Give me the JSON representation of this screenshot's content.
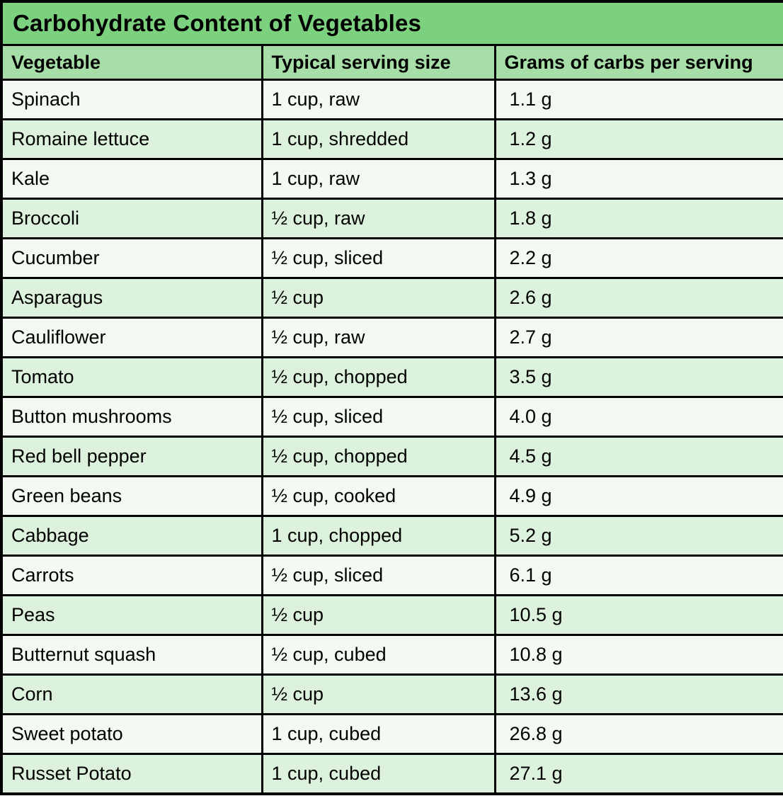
{
  "chart_data": {
    "type": "table",
    "title": "Carbohydrate Content of Vegetables",
    "columns": [
      "Vegetable",
      "Typical serving size",
      "Grams of carbs per serving"
    ],
    "rows": [
      [
        "Spinach",
        "1 cup, raw",
        "1.1 g"
      ],
      [
        "Romaine lettuce",
        "1 cup, shredded",
        "1.2 g"
      ],
      [
        "Kale",
        "1 cup, raw",
        "1.3 g"
      ],
      [
        "Broccoli",
        "½ cup, raw",
        "1.8 g"
      ],
      [
        "Cucumber",
        "½ cup, sliced",
        "2.2 g"
      ],
      [
        "Asparagus",
        "½ cup",
        "2.6 g"
      ],
      [
        "Cauliflower",
        "½ cup, raw",
        "2.7 g"
      ],
      [
        "Tomato",
        "½ cup, chopped",
        "3.5 g"
      ],
      [
        "Button mushrooms",
        "½ cup, sliced",
        "4.0 g"
      ],
      [
        "Red bell pepper",
        "½ cup, chopped",
        "4.5 g"
      ],
      [
        "Green beans",
        "½ cup, cooked",
        "4.9 g"
      ],
      [
        "Cabbage",
        "1 cup, chopped",
        "5.2 g"
      ],
      [
        "Carrots",
        "½ cup, sliced",
        "6.1 g"
      ],
      [
        "Peas",
        "½ cup",
        "10.5 g"
      ],
      [
        "Butternut squash",
        "½ cup, cubed",
        "10.8 g"
      ],
      [
        "Corn",
        "½ cup",
        "13.6 g"
      ],
      [
        "Sweet potato",
        "1 cup, cubed",
        "26.8 g"
      ],
      [
        "Russet Potato",
        "1 cup, cubed",
        "27.1 g"
      ]
    ],
    "carbs_grams": [
      1.1,
      1.2,
      1.3,
      1.8,
      2.2,
      2.6,
      2.7,
      3.5,
      4.0,
      4.5,
      4.9,
      5.2,
      6.1,
      10.5,
      10.8,
      13.6,
      26.8,
      27.1
    ]
  },
  "colors": {
    "title_bg": "#7CD17E",
    "header_bg": "#A7DEA8",
    "row_light_bg": "#F3FAF1",
    "row_green_bg": "#DDF2DC",
    "border": "#000000",
    "text": "#000000"
  }
}
